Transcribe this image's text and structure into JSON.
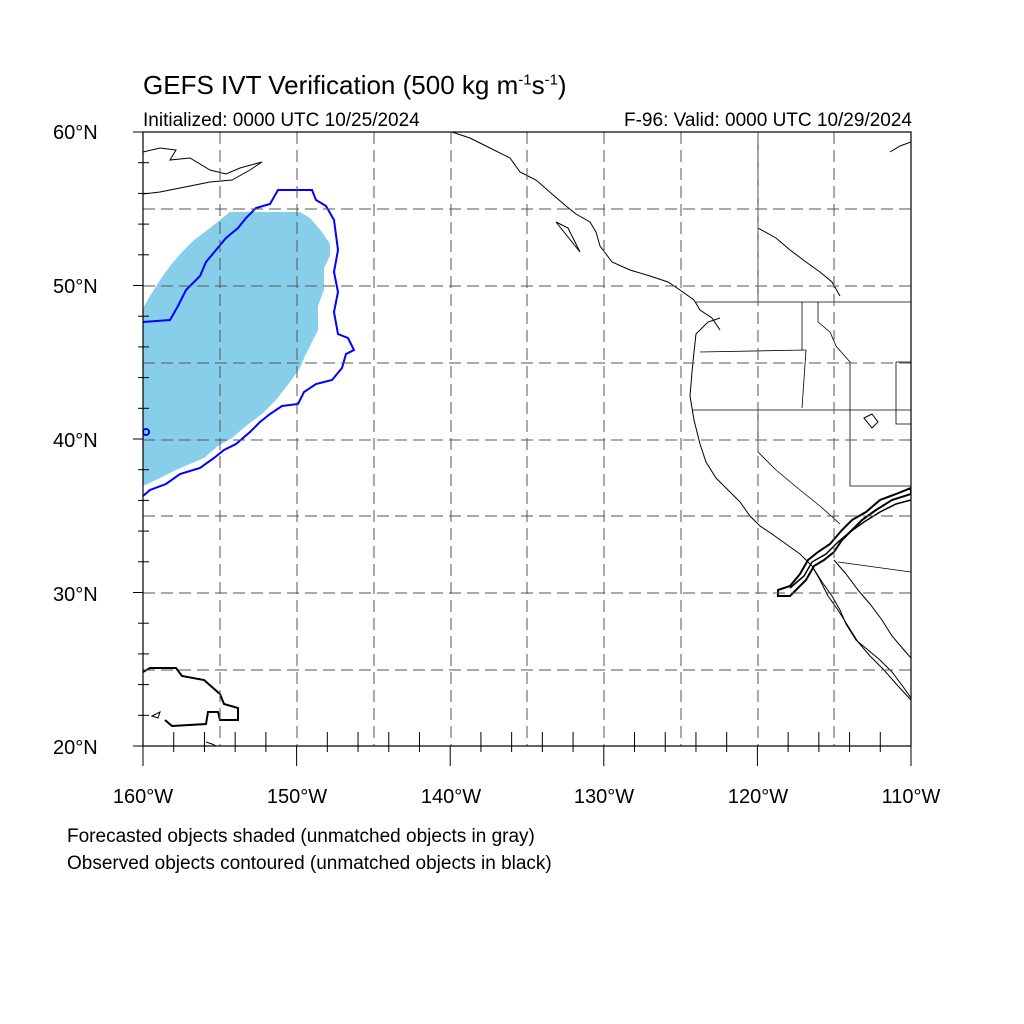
{
  "title": {
    "main": "GEFS IVT Verification (500 kg m",
    "exp1": "-1",
    "mid": "s",
    "exp2": "-1",
    "close": ")"
  },
  "initialized": "Initialized: 0000 UTC 10/25/2024",
  "valid": "F-96: Valid: 0000 UTC 10/29/2024",
  "lat_labels": [
    "60°N",
    "50°N",
    "40°N",
    "30°N",
    "20°N"
  ],
  "lon_labels": [
    "160°W",
    "150°W",
    "140°W",
    "130°W",
    "120°W",
    "110°W"
  ],
  "notes": [
    "Forecasted objects shaded (unmatched objects in gray)",
    "Observed objects contoured (unmatched objects in black)"
  ],
  "colors": {
    "forecast_matched": "#87ceeb",
    "observed_matched": "#0000ff",
    "observed_unmatched": "#000000",
    "grid": "#555555"
  }
}
